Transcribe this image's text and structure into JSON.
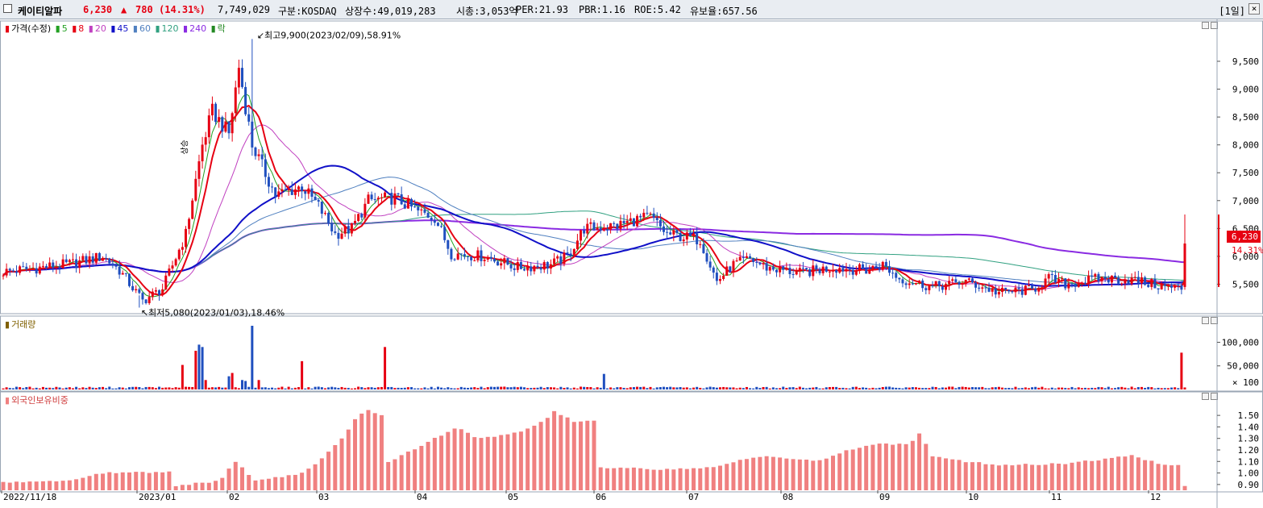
{
  "header": {
    "name": "케이티알파",
    "price": "6,230",
    "change_arrow": "▲",
    "change": "780",
    "change_pct": "(14.31%)",
    "volume": "7,749,029",
    "market": "구분:KOSDAQ",
    "shares": "상장수:49,019,283",
    "mcap": "시총:3,053억",
    "per": "PER:21.93",
    "pbr": "PBR:1.16",
    "roe": "ROE:5.42",
    "turnover": "유보율:657.56",
    "interval": "[1일]",
    "close_glyph": "×"
  },
  "colors": {
    "up": "#e60012",
    "down": "#1f4fbf",
    "ma5": "#22a022",
    "ma8": "#e60012",
    "ma20": "#c040c0",
    "ma45": "#1010c8",
    "ma60": "#5080c0",
    "ma120": "#30a080",
    "ma240": "#8a2be2",
    "foreign_bar": "#f08080"
  },
  "legend": {
    "price": "가격(수정)",
    "ma": [
      {
        "label": "5",
        "color": "#22a022"
      },
      {
        "label": "8",
        "color": "#e60012"
      },
      {
        "label": "20",
        "color": "#c040c0"
      },
      {
        "label": "45",
        "color": "#1010c8"
      },
      {
        "label": "60",
        "color": "#5080c0"
      },
      {
        "label": "120",
        "color": "#30a080"
      },
      {
        "label": "240",
        "color": "#8a2be2"
      },
      {
        "label": "락",
        "color": "#228822"
      }
    ],
    "volume": "거래량",
    "foreign": "외국인보유비중"
  },
  "annotations": {
    "high": "최고9,900(2023/02/09),58.91%",
    "low": "최저5,080(2023/01/03),18.46%",
    "flag": "상승"
  },
  "current": {
    "price_label": "6,230",
    "pct_label": "14.31%"
  },
  "chart_data": [
    {
      "type": "candlestick",
      "title": "가격(수정)",
      "ylim": [
        5000,
        10050
      ],
      "yticks": [
        5500,
        6000,
        6500,
        7000,
        7500,
        8000,
        8500,
        9000,
        9500
      ],
      "ytick_labels": [
        "5,500",
        "6,000",
        "6,500",
        "7,000",
        "7,500",
        "8,000",
        "8,500",
        "9,000",
        "9,500"
      ],
      "x_labels": [
        "2022/11/18",
        "2023/01",
        "02",
        "03",
        "04",
        "05",
        "06",
        "07",
        "08",
        "09",
        "10",
        "11",
        "12"
      ],
      "anchors": [
        {
          "d": 0,
          "v": 5720
        },
        {
          "d": 20,
          "v": 5860
        },
        {
          "d": 30,
          "v": 6000
        },
        {
          "d": 35,
          "v": 5750
        },
        {
          "d": 42,
          "v": 5200
        },
        {
          "d": 48,
          "v": 5420
        },
        {
          "d": 55,
          "v": 6400
        },
        {
          "d": 60,
          "v": 8000
        },
        {
          "d": 63,
          "v": 8600
        },
        {
          "d": 68,
          "v": 8200
        },
        {
          "d": 71,
          "v": 9400
        },
        {
          "d": 75,
          "v": 8000
        },
        {
          "d": 82,
          "v": 7100
        },
        {
          "d": 90,
          "v": 7250
        },
        {
          "d": 95,
          "v": 6900
        },
        {
          "d": 100,
          "v": 6400
        },
        {
          "d": 105,
          "v": 6500
        },
        {
          "d": 110,
          "v": 7000
        },
        {
          "d": 118,
          "v": 7050
        },
        {
          "d": 125,
          "v": 6800
        },
        {
          "d": 130,
          "v": 6700
        },
        {
          "d": 135,
          "v": 6050
        },
        {
          "d": 145,
          "v": 6000
        },
        {
          "d": 155,
          "v": 5800
        },
        {
          "d": 165,
          "v": 5850
        },
        {
          "d": 170,
          "v": 6000
        },
        {
          "d": 175,
          "v": 6500
        },
        {
          "d": 185,
          "v": 6550
        },
        {
          "d": 190,
          "v": 6650
        },
        {
          "d": 195,
          "v": 6700
        },
        {
          "d": 200,
          "v": 6400
        },
        {
          "d": 210,
          "v": 6300
        },
        {
          "d": 215,
          "v": 5550
        },
        {
          "d": 220,
          "v": 5850
        },
        {
          "d": 225,
          "v": 5950
        },
        {
          "d": 230,
          "v": 5800
        },
        {
          "d": 240,
          "v": 5700
        },
        {
          "d": 250,
          "v": 5800
        },
        {
          "d": 260,
          "v": 5750
        },
        {
          "d": 265,
          "v": 5850
        },
        {
          "d": 270,
          "v": 5600
        },
        {
          "d": 280,
          "v": 5450
        },
        {
          "d": 290,
          "v": 5550
        },
        {
          "d": 300,
          "v": 5350
        },
        {
          "d": 310,
          "v": 5400
        },
        {
          "d": 315,
          "v": 5600
        },
        {
          "d": 320,
          "v": 5500
        },
        {
          "d": 330,
          "v": 5600
        },
        {
          "d": 340,
          "v": 5580
        },
        {
          "d": 350,
          "v": 5450
        },
        {
          "d": 356,
          "v": 5420
        }
      ],
      "last_candle": {
        "open": 5450,
        "high": 6750,
        "low": 5400,
        "close": 6230
      },
      "high_point": {
        "date": "2023/02/09",
        "value": 9900
      },
      "low_point": {
        "date": "2023/01/03",
        "value": 5080
      }
    },
    {
      "type": "bar",
      "title": "거래량",
      "unit": "× 100",
      "ylim": [
        0,
        135000
      ],
      "yticks": [
        50000,
        100000
      ],
      "ytick_labels": [
        "50,000",
        "100,000"
      ],
      "spikes": [
        {
          "d": 54,
          "v": 52000,
          "up": true
        },
        {
          "d": 58,
          "v": 82000,
          "up": true
        },
        {
          "d": 59,
          "v": 95000,
          "up": false
        },
        {
          "d": 60,
          "v": 90000,
          "up": false
        },
        {
          "d": 61,
          "v": 20000,
          "up": true
        },
        {
          "d": 68,
          "v": 28000,
          "up": false
        },
        {
          "d": 69,
          "v": 35000,
          "up": true
        },
        {
          "d": 72,
          "v": 20000,
          "up": false
        },
        {
          "d": 73,
          "v": 18000,
          "up": false
        },
        {
          "d": 75,
          "v": 135000,
          "up": false
        },
        {
          "d": 77,
          "v": 20000,
          "up": true
        },
        {
          "d": 90,
          "v": 60000,
          "up": true
        },
        {
          "d": 115,
          "v": 90000,
          "up": true
        },
        {
          "d": 181,
          "v": 33000,
          "up": false
        },
        {
          "d": 355,
          "v": 78000,
          "up": true
        }
      ]
    },
    {
      "type": "bar",
      "title": "외국인보유비중",
      "ylim": [
        0.85,
        1.62
      ],
      "yticks": [
        0.9,
        1.0,
        1.1,
        1.2,
        1.3,
        1.4,
        1.5
      ],
      "ytick_labels": [
        "0.90",
        "1.00",
        "1.10",
        "1.20",
        "1.30",
        "1.40",
        "1.50"
      ],
      "anchors": [
        {
          "d": 0,
          "v": 0.92
        },
        {
          "d": 20,
          "v": 0.93
        },
        {
          "d": 30,
          "v": 1.0
        },
        {
          "d": 50,
          "v": 1.01
        },
        {
          "d": 52,
          "v": 0.89
        },
        {
          "d": 65,
          "v": 0.93
        },
        {
          "d": 70,
          "v": 1.1
        },
        {
          "d": 76,
          "v": 0.93
        },
        {
          "d": 90,
          "v": 1.0
        },
        {
          "d": 95,
          "v": 1.1
        },
        {
          "d": 102,
          "v": 1.3
        },
        {
          "d": 107,
          "v": 1.5
        },
        {
          "d": 110,
          "v": 1.55
        },
        {
          "d": 114,
          "v": 1.5
        },
        {
          "d": 116,
          "v": 1.1
        },
        {
          "d": 120,
          "v": 1.15
        },
        {
          "d": 130,
          "v": 1.3
        },
        {
          "d": 137,
          "v": 1.4
        },
        {
          "d": 143,
          "v": 1.3
        },
        {
          "d": 155,
          "v": 1.35
        },
        {
          "d": 163,
          "v": 1.45
        },
        {
          "d": 166,
          "v": 1.53
        },
        {
          "d": 172,
          "v": 1.45
        },
        {
          "d": 179,
          "v": 1.45
        },
        {
          "d": 180,
          "v": 1.05
        },
        {
          "d": 200,
          "v": 1.03
        },
        {
          "d": 215,
          "v": 1.05
        },
        {
          "d": 220,
          "v": 1.1
        },
        {
          "d": 230,
          "v": 1.15
        },
        {
          "d": 245,
          "v": 1.1
        },
        {
          "d": 255,
          "v": 1.2
        },
        {
          "d": 262,
          "v": 1.25
        },
        {
          "d": 273,
          "v": 1.25
        },
        {
          "d": 276,
          "v": 1.35
        },
        {
          "d": 280,
          "v": 1.15
        },
        {
          "d": 290,
          "v": 1.1
        },
        {
          "d": 300,
          "v": 1.07
        },
        {
          "d": 320,
          "v": 1.08
        },
        {
          "d": 340,
          "v": 1.15
        },
        {
          "d": 350,
          "v": 1.07
        },
        {
          "d": 355,
          "v": 1.07
        },
        {
          "d": 356,
          "v": 0.88
        }
      ]
    }
  ]
}
